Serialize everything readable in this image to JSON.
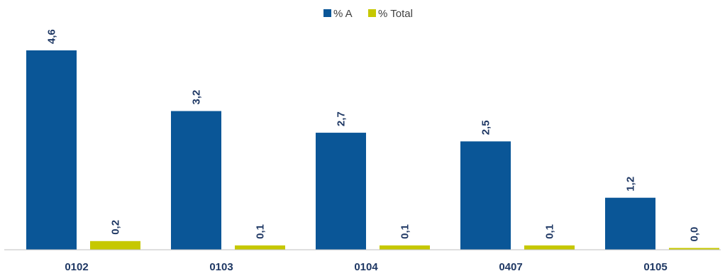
{
  "colors": {
    "series_a": "#0a5697",
    "series_total": "#c6c800",
    "axis": "#bfbfbf",
    "label": "#1f3864"
  },
  "chart_data": {
    "type": "bar",
    "categories": [
      "0102",
      "0103",
      "0104",
      "0407",
      "0105"
    ],
    "series": [
      {
        "name": "% A",
        "values": [
          4.6,
          3.2,
          2.7,
          2.5,
          1.2
        ],
        "labels": [
          "4,6",
          "3,2",
          "2,7",
          "2,5",
          "1,2"
        ]
      },
      {
        "name": "% Total",
        "values": [
          0.2,
          0.1,
          0.1,
          0.1,
          0.0
        ],
        "labels": [
          "0,2",
          "0,1",
          "0,1",
          "0,1",
          "0,0"
        ]
      }
    ],
    "legend_position": "top-center",
    "grid": false,
    "ylim": [
      0,
      4.6
    ]
  }
}
